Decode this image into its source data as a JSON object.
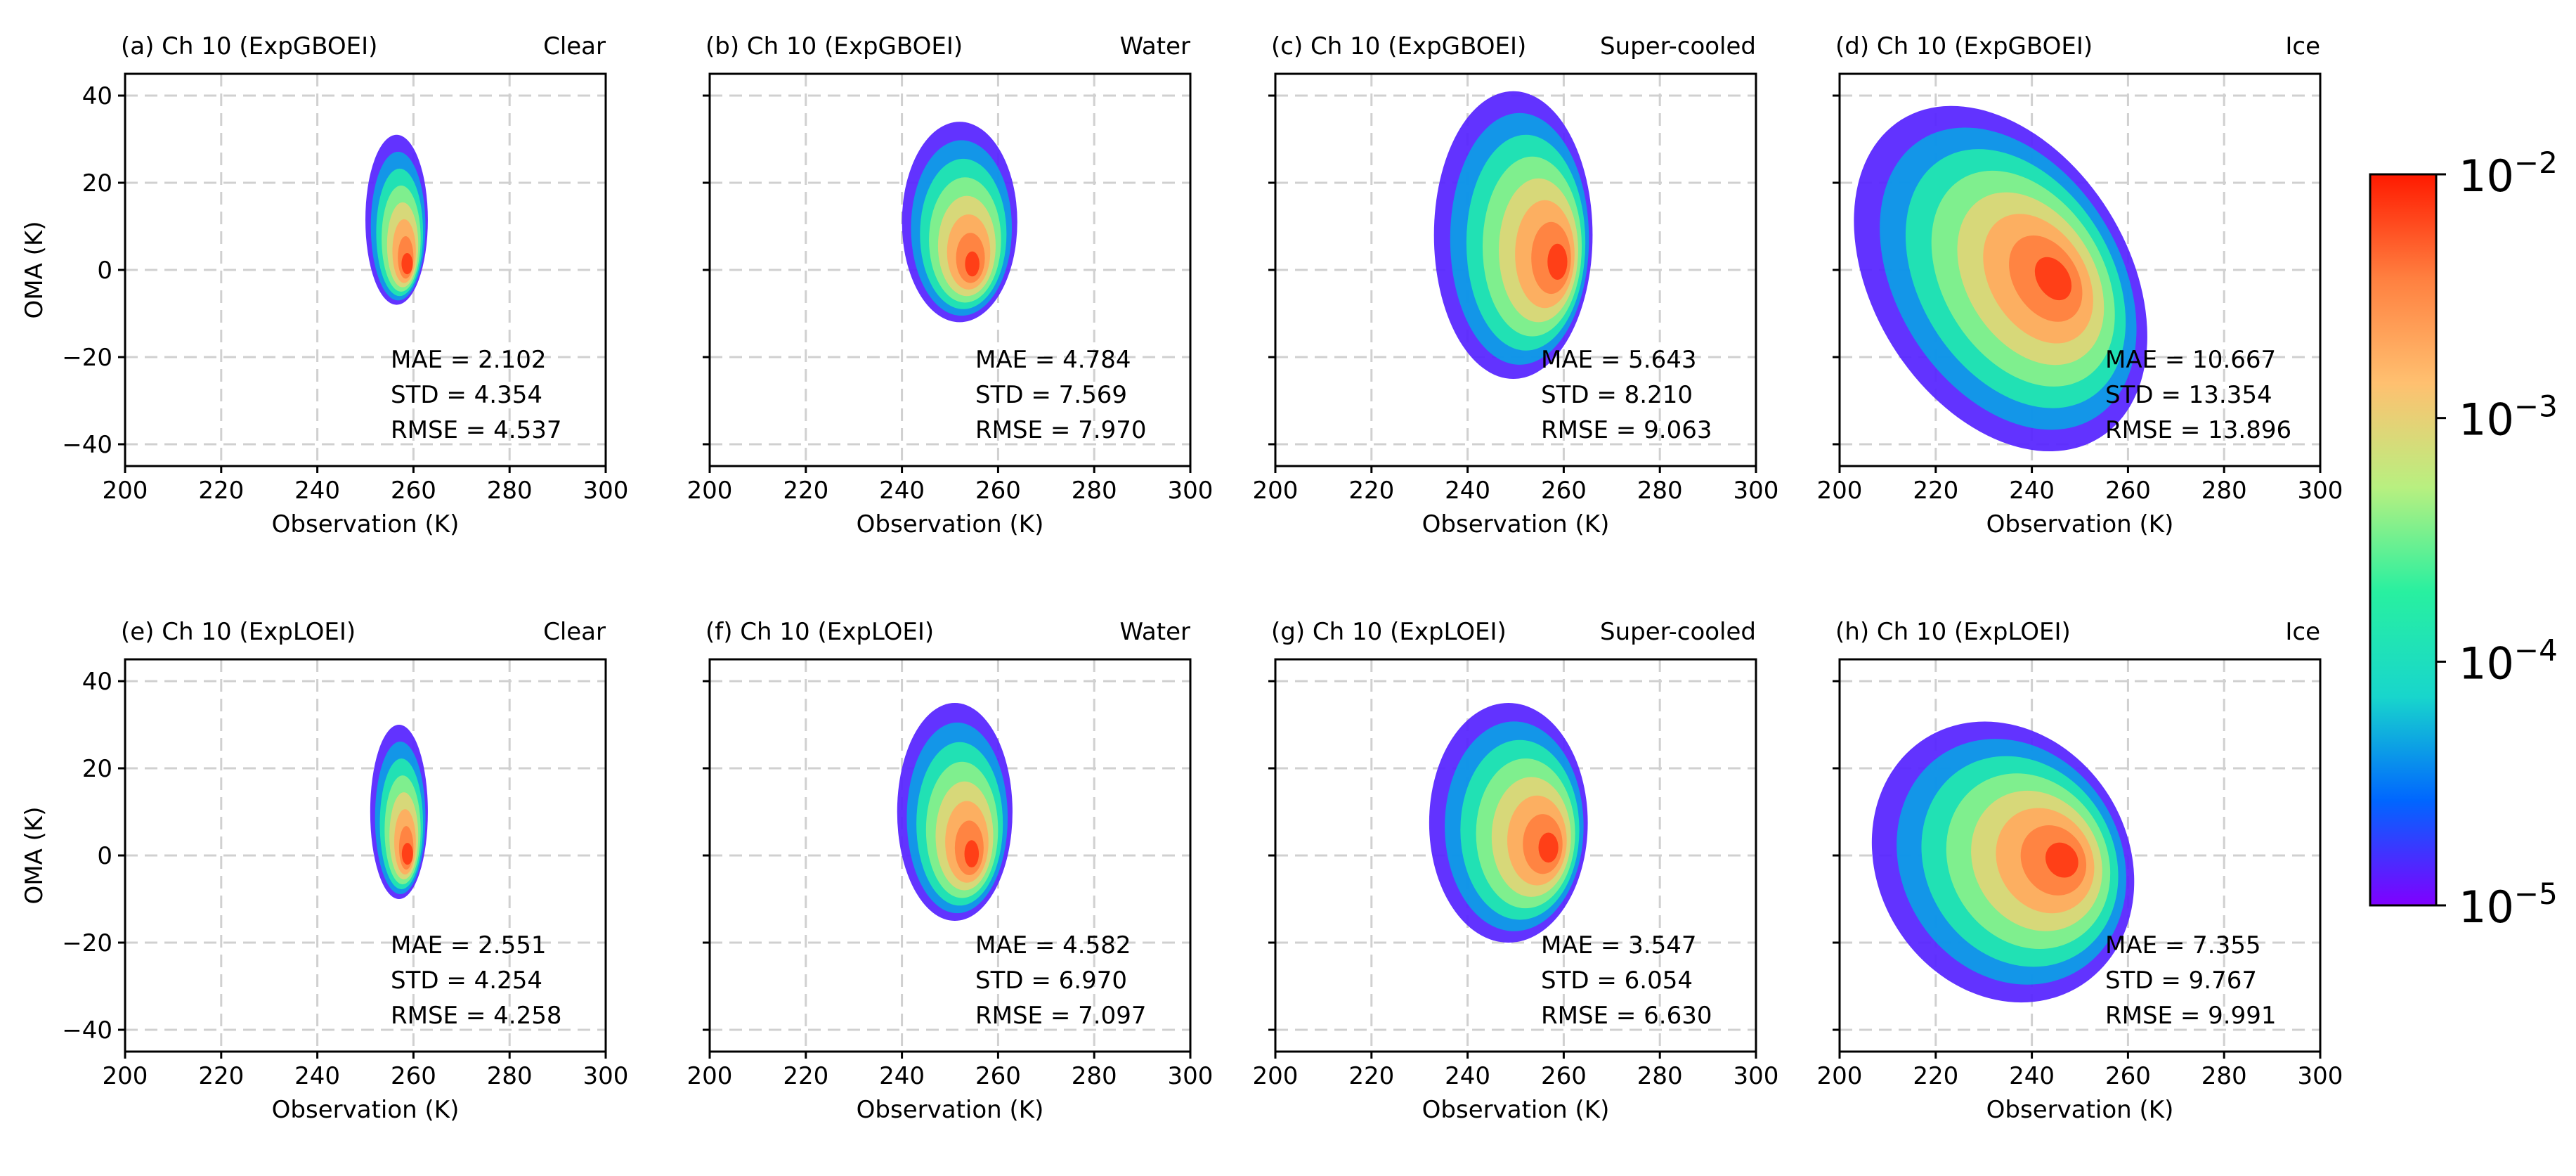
{
  "figure": {
    "colorbar": {
      "scale": "log",
      "range": [
        1e-05,
        0.01
      ],
      "colormap": "rainbow",
      "tick_labels": [
        {
          "base": "10",
          "exp": "−2"
        },
        {
          "base": "10",
          "exp": "−3"
        },
        {
          "base": "10",
          "exp": "−4"
        },
        {
          "base": "10",
          "exp": "−5"
        }
      ],
      "colors": [
        "#8000ff",
        "#0066ff",
        "#18d6cc",
        "#28f0a0",
        "#b8f080",
        "#ffc070",
        "#ff8040",
        "#ff1a00"
      ]
    }
  },
  "chart_data": [
    {
      "type": "heatmap",
      "panel": "(a)",
      "title": "(a) Ch 10 (ExpGBOEI)",
      "category": "Clear",
      "xlabel": "Observation (K)",
      "ylabel": "OMA (K)",
      "xlim": [
        200,
        300
      ],
      "ylim": [
        -45,
        45
      ],
      "xticks": [
        "200",
        "220",
        "240",
        "260",
        "280",
        "300"
      ],
      "yticks": [
        "40",
        "20",
        "0",
        "−20",
        "−40"
      ],
      "grid": true,
      "stats": [
        {
          "label": "MAE",
          "value": "2.102"
        },
        {
          "label": "STD",
          "value": "4.354"
        },
        {
          "label": "RMSE",
          "value": "4.537"
        }
      ],
      "distribution": {
        "x_range": [
          250,
          263
        ],
        "y_range": [
          -8,
          31
        ],
        "peak": [
          259,
          0
        ]
      }
    },
    {
      "type": "heatmap",
      "panel": "(b)",
      "title": "(b) Ch 10 (ExpGBOEI)",
      "category": "Water",
      "xlabel": "Observation (K)",
      "ylabel": "",
      "xlim": [
        200,
        300
      ],
      "ylim": [
        -45,
        45
      ],
      "xticks": [
        "200",
        "220",
        "240",
        "260",
        "280",
        "300"
      ],
      "yticks": [],
      "grid": true,
      "stats": [
        {
          "label": "MAE",
          "value": "4.784"
        },
        {
          "label": "STD",
          "value": "7.569"
        },
        {
          "label": "RMSE",
          "value": "7.970"
        }
      ],
      "distribution": {
        "x_range": [
          240,
          264
        ],
        "y_range": [
          -12,
          34
        ],
        "peak": [
          255,
          0
        ]
      }
    },
    {
      "type": "heatmap",
      "panel": "(c)",
      "title": "(c) Ch 10 (ExpGBOEI)",
      "category": "Super-cooled",
      "xlabel": "Observation (K)",
      "ylabel": "",
      "xlim": [
        200,
        300
      ],
      "ylim": [
        -45,
        45
      ],
      "xticks": [
        "200",
        "220",
        "240",
        "260",
        "280",
        "300"
      ],
      "yticks": [],
      "grid": true,
      "stats": [
        {
          "label": "MAE",
          "value": "5.643"
        },
        {
          "label": "STD",
          "value": "8.210"
        },
        {
          "label": "RMSE",
          "value": "9.063"
        }
      ],
      "distribution": {
        "x_range": [
          233,
          266
        ],
        "y_range": [
          -25,
          41
        ],
        "peak": [
          260,
          1
        ]
      }
    },
    {
      "type": "heatmap",
      "panel": "(d)",
      "title": "(d) Ch 10 (ExpGBOEI)",
      "category": "Ice",
      "xlabel": "Observation (K)",
      "ylabel": "",
      "xlim": [
        200,
        300
      ],
      "ylim": [
        -45,
        45
      ],
      "xticks": [
        "200",
        "220",
        "240",
        "260",
        "280",
        "300"
      ],
      "yticks": [],
      "grid": true,
      "stats": [
        {
          "label": "MAE",
          "value": "10.667"
        },
        {
          "label": "STD",
          "value": "13.354"
        },
        {
          "label": "RMSE",
          "value": "13.896"
        }
      ],
      "distribution": {
        "x_range": [
          207,
          260
        ],
        "y_range": [
          -45,
          41
        ],
        "peak": [
          246,
          -2
        ]
      }
    },
    {
      "type": "heatmap",
      "panel": "(e)",
      "title": "(e) Ch 10 (ExpLOEI)",
      "category": "Clear",
      "xlabel": "Observation (K)",
      "ylabel": "OMA (K)",
      "xlim": [
        200,
        300
      ],
      "ylim": [
        -45,
        45
      ],
      "xticks": [
        "200",
        "220",
        "240",
        "260",
        "280",
        "300"
      ],
      "yticks": [
        "40",
        "20",
        "0",
        "−20",
        "−40"
      ],
      "grid": true,
      "stats": [
        {
          "label": "MAE",
          "value": "2.551"
        },
        {
          "label": "STD",
          "value": "4.254"
        },
        {
          "label": "RMSE",
          "value": "4.258"
        }
      ],
      "distribution": {
        "x_range": [
          251,
          263
        ],
        "y_range": [
          -10,
          30
        ],
        "peak": [
          259,
          -1
        ]
      }
    },
    {
      "type": "heatmap",
      "panel": "(f)",
      "title": "(f) Ch 10 (ExpLOEI)",
      "category": "Water",
      "xlabel": "Observation (K)",
      "ylabel": "",
      "xlim": [
        200,
        300
      ],
      "ylim": [
        -45,
        45
      ],
      "xticks": [
        "200",
        "220",
        "240",
        "260",
        "280",
        "300"
      ],
      "yticks": [],
      "grid": true,
      "stats": [
        {
          "label": "MAE",
          "value": "4.582"
        },
        {
          "label": "STD",
          "value": "6.970"
        },
        {
          "label": "RMSE",
          "value": "7.097"
        }
      ],
      "distribution": {
        "x_range": [
          239,
          263
        ],
        "y_range": [
          -15,
          35
        ],
        "peak": [
          255,
          -1
        ]
      }
    },
    {
      "type": "heatmap",
      "panel": "(g)",
      "title": "(g) Ch 10 (ExpLOEI)",
      "category": "Super-cooled",
      "xlabel": "Observation (K)",
      "ylabel": "",
      "xlim": [
        200,
        300
      ],
      "ylim": [
        -45,
        45
      ],
      "xticks": [
        "200",
        "220",
        "240",
        "260",
        "280",
        "300"
      ],
      "yticks": [],
      "grid": true,
      "stats": [
        {
          "label": "MAE",
          "value": "3.547"
        },
        {
          "label": "STD",
          "value": "6.054"
        },
        {
          "label": "RMSE",
          "value": "6.630"
        }
      ],
      "distribution": {
        "x_range": [
          232,
          265
        ],
        "y_range": [
          -20,
          35
        ],
        "peak": [
          258,
          1
        ]
      }
    },
    {
      "type": "heatmap",
      "panel": "(h)",
      "title": "(h) Ch 10 (ExpLOEI)",
      "category": "Ice",
      "xlabel": "Observation (K)",
      "ylabel": "",
      "xlim": [
        200,
        300
      ],
      "ylim": [
        -45,
        45
      ],
      "xticks": [
        "200",
        "220",
        "240",
        "260",
        "280",
        "300"
      ],
      "yticks": [],
      "grid": true,
      "stats": [
        {
          "label": "MAE",
          "value": "7.355"
        },
        {
          "label": "STD",
          "value": "9.767"
        },
        {
          "label": "RMSE",
          "value": "9.991"
        }
      ],
      "distribution": {
        "x_range": [
          208,
          260
        ],
        "y_range": [
          -35,
          32
        ],
        "peak": [
          248,
          -1
        ]
      }
    }
  ]
}
